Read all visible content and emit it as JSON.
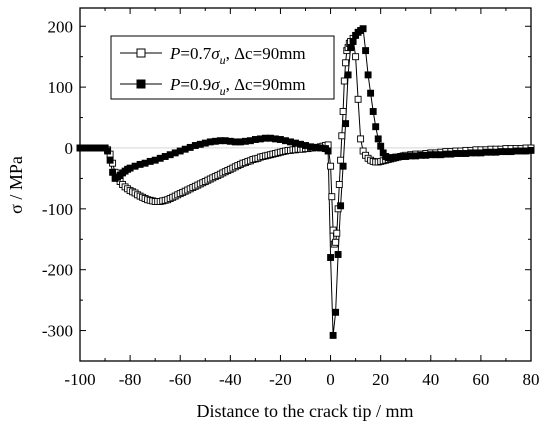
{
  "chart_data": {
    "type": "scatter",
    "xlabel": "Distance to the crack tip / mm",
    "ylabel": "σ / MPa",
    "xlim": [
      -100,
      80
    ],
    "ylim": [
      -350,
      230
    ],
    "xticks": [
      -100,
      -80,
      -60,
      -40,
      -20,
      0,
      20,
      40,
      60,
      80
    ],
    "yticks": [
      -300,
      -200,
      -100,
      0,
      100,
      200
    ],
    "tick_labels_x": [
      "-100",
      "-80",
      "-60",
      "-40",
      "-20",
      "0",
      "20",
      "40",
      "60",
      "80"
    ],
    "tick_labels_y": [
      "-300",
      "-200",
      "-100",
      "0",
      "100",
      "200"
    ],
    "grid": false,
    "legend_position": "top-right",
    "series": [
      {
        "legend": {
          "P": "P",
          "eq1": "=0.7",
          "sigma": "σ",
          "u": "u",
          "rest": ", Δc=90mm"
        },
        "marker": "open-square",
        "points": [
          [
            -100,
            0
          ],
          [
            -98,
            0
          ],
          [
            -96,
            0
          ],
          [
            -94,
            0
          ],
          [
            -92,
            0
          ],
          [
            -90,
            0
          ],
          [
            -89,
            -3
          ],
          [
            -88,
            -10
          ],
          [
            -87,
            -25
          ],
          [
            -86,
            -40
          ],
          [
            -85,
            -48
          ],
          [
            -84,
            -55
          ],
          [
            -83,
            -60
          ],
          [
            -82,
            -64
          ],
          [
            -81,
            -67
          ],
          [
            -80,
            -70
          ],
          [
            -79,
            -72
          ],
          [
            -78,
            -74
          ],
          [
            -77,
            -77
          ],
          [
            -76,
            -79
          ],
          [
            -75,
            -81
          ],
          [
            -74,
            -83
          ],
          [
            -73,
            -85
          ],
          [
            -72,
            -86
          ],
          [
            -71,
            -87
          ],
          [
            -70,
            -88
          ],
          [
            -69,
            -88
          ],
          [
            -68,
            -88
          ],
          [
            -67,
            -87
          ],
          [
            -66,
            -86
          ],
          [
            -65,
            -85
          ],
          [
            -64,
            -83
          ],
          [
            -63,
            -81
          ],
          [
            -62,
            -79
          ],
          [
            -61,
            -77
          ],
          [
            -60,
            -75
          ],
          [
            -59,
            -73
          ],
          [
            -58,
            -71
          ],
          [
            -57,
            -69
          ],
          [
            -56,
            -67
          ],
          [
            -55,
            -65
          ],
          [
            -54,
            -63
          ],
          [
            -53,
            -61
          ],
          [
            -52,
            -59
          ],
          [
            -51,
            -57
          ],
          [
            -50,
            -55
          ],
          [
            -49,
            -53
          ],
          [
            -48,
            -51
          ],
          [
            -47,
            -49
          ],
          [
            -46,
            -47
          ],
          [
            -45,
            -45
          ],
          [
            -44,
            -43
          ],
          [
            -43,
            -41
          ],
          [
            -42,
            -39
          ],
          [
            -41,
            -37
          ],
          [
            -40,
            -35
          ],
          [
            -39,
            -33
          ],
          [
            -38,
            -31
          ],
          [
            -37,
            -29
          ],
          [
            -36,
            -27
          ],
          [
            -35,
            -25
          ],
          [
            -34,
            -24
          ],
          [
            -33,
            -22
          ],
          [
            -32,
            -21
          ],
          [
            -31,
            -19
          ],
          [
            -30,
            -18
          ],
          [
            -29,
            -17
          ],
          [
            -28,
            -15
          ],
          [
            -27,
            -14
          ],
          [
            -26,
            -13
          ],
          [
            -25,
            -12
          ],
          [
            -24,
            -11
          ],
          [
            -23,
            -10
          ],
          [
            -22,
            -9
          ],
          [
            -21,
            -8
          ],
          [
            -20,
            -7
          ],
          [
            -19,
            -6
          ],
          [
            -18,
            -5
          ],
          [
            -17,
            -4
          ],
          [
            -16,
            -4
          ],
          [
            -15,
            -3
          ],
          [
            -14,
            -3
          ],
          [
            -13,
            -2
          ],
          [
            -12,
            -2
          ],
          [
            -11,
            -2
          ],
          [
            -10,
            -1
          ],
          [
            -9,
            -1
          ],
          [
            -8,
            0
          ],
          [
            -7,
            0
          ],
          [
            -6,
            1
          ],
          [
            -5,
            1
          ],
          [
            -4,
            2
          ],
          [
            -3,
            3
          ],
          [
            -2,
            4
          ],
          [
            -1,
            5
          ],
          [
            0,
            -30
          ],
          [
            0.5,
            -80
          ],
          [
            1,
            -135
          ],
          [
            1.5,
            -158
          ],
          [
            2,
            -155
          ],
          [
            2.5,
            -140
          ],
          [
            3,
            -100
          ],
          [
            3.5,
            -60
          ],
          [
            4,
            -20
          ],
          [
            4.5,
            20
          ],
          [
            5,
            60
          ],
          [
            5.5,
            110
          ],
          [
            6,
            140
          ],
          [
            6.5,
            160
          ],
          [
            7,
            165
          ],
          [
            7.5,
            172
          ],
          [
            8,
            175
          ],
          [
            9,
            180
          ],
          [
            10,
            150
          ],
          [
            11,
            80
          ],
          [
            12,
            15
          ],
          [
            13,
            -5
          ],
          [
            14,
            -12
          ],
          [
            15,
            -17
          ],
          [
            16,
            -20
          ],
          [
            17,
            -22
          ],
          [
            18,
            -23
          ],
          [
            19,
            -23
          ],
          [
            20,
            -22
          ],
          [
            21,
            -21
          ],
          [
            22,
            -20
          ],
          [
            23,
            -19
          ],
          [
            24,
            -18
          ],
          [
            25,
            -17
          ],
          [
            26,
            -16
          ],
          [
            27,
            -15
          ],
          [
            28,
            -14
          ],
          [
            29,
            -13
          ],
          [
            30,
            -12
          ],
          [
            32,
            -11
          ],
          [
            34,
            -10
          ],
          [
            36,
            -10
          ],
          [
            38,
            -9
          ],
          [
            40,
            -8
          ],
          [
            42,
            -8
          ],
          [
            44,
            -7
          ],
          [
            46,
            -6
          ],
          [
            48,
            -6
          ],
          [
            50,
            -5
          ],
          [
            52,
            -5
          ],
          [
            54,
            -4
          ],
          [
            56,
            -4
          ],
          [
            58,
            -3
          ],
          [
            60,
            -3
          ],
          [
            62,
            -3
          ],
          [
            64,
            -2
          ],
          [
            66,
            -2
          ],
          [
            68,
            -2
          ],
          [
            70,
            -1
          ],
          [
            72,
            -1
          ],
          [
            74,
            -1
          ],
          [
            76,
            -1
          ],
          [
            78,
            0
          ],
          [
            80,
            0
          ]
        ]
      },
      {
        "legend": {
          "P": "P",
          "eq1": "=0.9",
          "sigma": "σ",
          "u": "u",
          "rest": ", Δc=90mm"
        },
        "marker": "filled-square",
        "points": [
          [
            -100,
            0
          ],
          [
            -98,
            0
          ],
          [
            -96,
            0
          ],
          [
            -94,
            0
          ],
          [
            -92,
            0
          ],
          [
            -90,
            0
          ],
          [
            -89,
            -5
          ],
          [
            -88,
            -20
          ],
          [
            -87,
            -40
          ],
          [
            -86,
            -50
          ],
          [
            -85,
            -48
          ],
          [
            -84,
            -45
          ],
          [
            -83,
            -41
          ],
          [
            -82,
            -38
          ],
          [
            -81,
            -35
          ],
          [
            -80,
            -33
          ],
          [
            -78,
            -30
          ],
          [
            -76,
            -27
          ],
          [
            -74,
            -25
          ],
          [
            -72,
            -22
          ],
          [
            -70,
            -20
          ],
          [
            -68,
            -17
          ],
          [
            -66,
            -14
          ],
          [
            -64,
            -11
          ],
          [
            -62,
            -8
          ],
          [
            -60,
            -5
          ],
          [
            -58,
            -2
          ],
          [
            -56,
            1
          ],
          [
            -54,
            4
          ],
          [
            -52,
            6
          ],
          [
            -50,
            8
          ],
          [
            -48,
            10
          ],
          [
            -46,
            11
          ],
          [
            -44,
            12
          ],
          [
            -42,
            12
          ],
          [
            -40,
            11
          ],
          [
            -38,
            10
          ],
          [
            -36,
            10
          ],
          [
            -34,
            11
          ],
          [
            -32,
            12
          ],
          [
            -30,
            14
          ],
          [
            -28,
            15
          ],
          [
            -26,
            16
          ],
          [
            -24,
            16
          ],
          [
            -22,
            15
          ],
          [
            -20,
            14
          ],
          [
            -18,
            12
          ],
          [
            -16,
            10
          ],
          [
            -14,
            8
          ],
          [
            -12,
            6
          ],
          [
            -10,
            4
          ],
          [
            -8,
            2
          ],
          [
            -6,
            1
          ],
          [
            -4,
            0
          ],
          [
            -2,
            -1
          ],
          [
            -1,
            -5
          ],
          [
            0,
            -180
          ],
          [
            1,
            -308
          ],
          [
            2,
            -270
          ],
          [
            3,
            -175
          ],
          [
            4,
            -95
          ],
          [
            5,
            -30
          ],
          [
            6,
            40
          ],
          [
            7,
            120
          ],
          [
            8,
            165
          ],
          [
            9,
            175
          ],
          [
            10,
            185
          ],
          [
            11,
            190
          ],
          [
            12,
            193
          ],
          [
            13,
            196
          ],
          [
            14,
            160
          ],
          [
            15,
            120
          ],
          [
            16,
            90
          ],
          [
            17,
            60
          ],
          [
            18,
            35
          ],
          [
            19,
            15
          ],
          [
            20,
            3
          ],
          [
            21,
            -8
          ],
          [
            22,
            -14
          ],
          [
            23,
            -16
          ],
          [
            24,
            -16
          ],
          [
            25,
            -16
          ],
          [
            26,
            -15
          ],
          [
            28,
            -14
          ],
          [
            30,
            -14
          ],
          [
            32,
            -13
          ],
          [
            34,
            -13
          ],
          [
            36,
            -12
          ],
          [
            38,
            -12
          ],
          [
            40,
            -11
          ],
          [
            42,
            -11
          ],
          [
            44,
            -11
          ],
          [
            46,
            -10
          ],
          [
            48,
            -10
          ],
          [
            50,
            -9
          ],
          [
            52,
            -9
          ],
          [
            54,
            -9
          ],
          [
            56,
            -8
          ],
          [
            58,
            -8
          ],
          [
            60,
            -8
          ],
          [
            62,
            -7
          ],
          [
            64,
            -7
          ],
          [
            66,
            -7
          ],
          [
            68,
            -6
          ],
          [
            70,
            -6
          ],
          [
            72,
            -6
          ],
          [
            74,
            -5
          ],
          [
            76,
            -5
          ],
          [
            78,
            -5
          ],
          [
            80,
            -4
          ]
        ]
      }
    ]
  }
}
